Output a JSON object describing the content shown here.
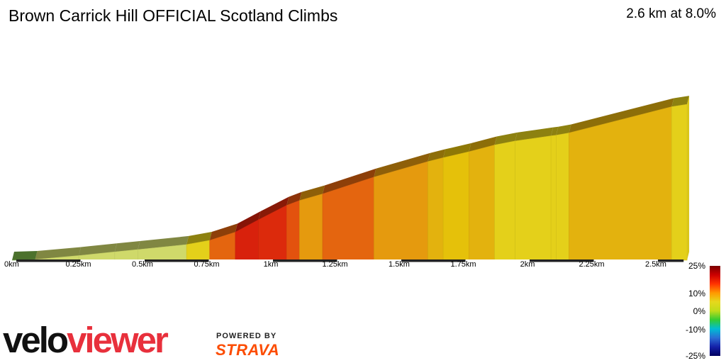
{
  "header": {
    "title": "Brown Carrick Hill OFFICIAL Scotland Climbs",
    "summary": "2.6 km at 8.0%"
  },
  "legend": {
    "labels": [
      "25%",
      "10%",
      "0%",
      "-10%",
      "-25%"
    ]
  },
  "branding": {
    "logo_velo": "velo",
    "logo_viewer": "viewer",
    "powered_by": "POWERED BY",
    "strava": "STRAVA"
  },
  "chart_data": {
    "type": "area",
    "x_unit": "km",
    "x_ticks": [
      "0km",
      "0.25km",
      "0.5km",
      "0.75km",
      "1km",
      "1.25km",
      "1.5km",
      "1.75km",
      "2km",
      "2.25km",
      "2.5km"
    ],
    "x_tick_values": [
      0,
      0.25,
      0.5,
      0.75,
      1.0,
      1.25,
      1.5,
      1.75,
      2.0,
      2.25,
      2.5
    ],
    "xlim": [
      0,
      2.6
    ],
    "segments": [
      {
        "x0": 0.0,
        "x1": 0.09,
        "y0": 0.0,
        "y1": 0.9,
        "grade": 1.0
      },
      {
        "x0": 0.09,
        "x1": 0.26,
        "y0": 0.9,
        "y1": 5.8,
        "grade": 2.9
      },
      {
        "x0": 0.26,
        "x1": 0.4,
        "y0": 5.8,
        "y1": 10.5,
        "grade": 3.4
      },
      {
        "x0": 0.4,
        "x1": 0.49,
        "y0": 10.5,
        "y1": 13.4,
        "grade": 3.2
      },
      {
        "x0": 0.49,
        "x1": 0.68,
        "y0": 13.4,
        "y1": 19.7,
        "grade": 3.3
      },
      {
        "x0": 0.68,
        "x1": 0.77,
        "y0": 19.7,
        "y1": 25.0,
        "grade": 5.9
      },
      {
        "x0": 0.77,
        "x1": 0.87,
        "y0": 25.0,
        "y1": 35.4,
        "grade": 10.4
      },
      {
        "x0": 0.87,
        "x1": 0.96,
        "y0": 35.4,
        "y1": 50.9,
        "grade": 17.2
      },
      {
        "x0": 0.96,
        "x1": 1.07,
        "y0": 50.9,
        "y1": 69.1,
        "grade": 16.5
      },
      {
        "x0": 1.07,
        "x1": 1.12,
        "y0": 69.1,
        "y1": 75.2,
        "grade": 12.2
      },
      {
        "x0": 1.12,
        "x1": 1.21,
        "y0": 75.2,
        "y1": 83.5,
        "grade": 9.2
      },
      {
        "x0": 1.21,
        "x1": 1.41,
        "y0": 83.5,
        "y1": 104.7,
        "grade": 10.6
      },
      {
        "x0": 1.41,
        "x1": 1.62,
        "y0": 104.7,
        "y1": 124.2,
        "grade": 9.3
      },
      {
        "x0": 1.62,
        "x1": 1.68,
        "y0": 124.2,
        "y1": 129.1,
        "grade": 8.2
      },
      {
        "x0": 1.68,
        "x1": 1.78,
        "y0": 129.1,
        "y1": 136.6,
        "grade": 7.5
      },
      {
        "x0": 1.78,
        "x1": 1.88,
        "y0": 136.6,
        "y1": 145.1,
        "grade": 8.5
      },
      {
        "x0": 1.88,
        "x1": 1.96,
        "y0": 145.1,
        "y1": 150.1,
        "grade": 6.2
      },
      {
        "x0": 1.96,
        "x1": 2.1,
        "y0": 150.1,
        "y1": 156.6,
        "grade": 4.6
      },
      {
        "x0": 2.1,
        "x1": 2.12,
        "y0": 156.6,
        "y1": 157.4,
        "grade": 4.0
      },
      {
        "x0": 2.12,
        "x1": 2.17,
        "y0": 157.4,
        "y1": 160.3,
        "grade": 5.8
      },
      {
        "x0": 2.17,
        "x1": 2.57,
        "y0": 160.3,
        "y1": 193.3,
        "grade": 8.3
      },
      {
        "x0": 2.57,
        "x1": 2.63,
        "y0": 193.3,
        "y1": 196.3,
        "grade": 5.0
      }
    ],
    "colors": {
      "g1": "#7ab648",
      "g3": "#cfd96a",
      "g5": "#e4d01a",
      "g6": "#e5c10a",
      "g8": "#e3b20e",
      "g9": "#e59a0e",
      "g10": "#e4650f",
      "g12": "#e3520e",
      "g16": "#dc2a0c",
      "g17": "#d8210c",
      "legend_gradient": [
        "#7a0000",
        "#cc0000",
        "#ff3300",
        "#ff9900",
        "#e6d81c",
        "#bfdc1a",
        "#33cc33",
        "#00bcd4",
        "#2a6dd4",
        "#1420a8",
        "#000060"
      ]
    }
  }
}
